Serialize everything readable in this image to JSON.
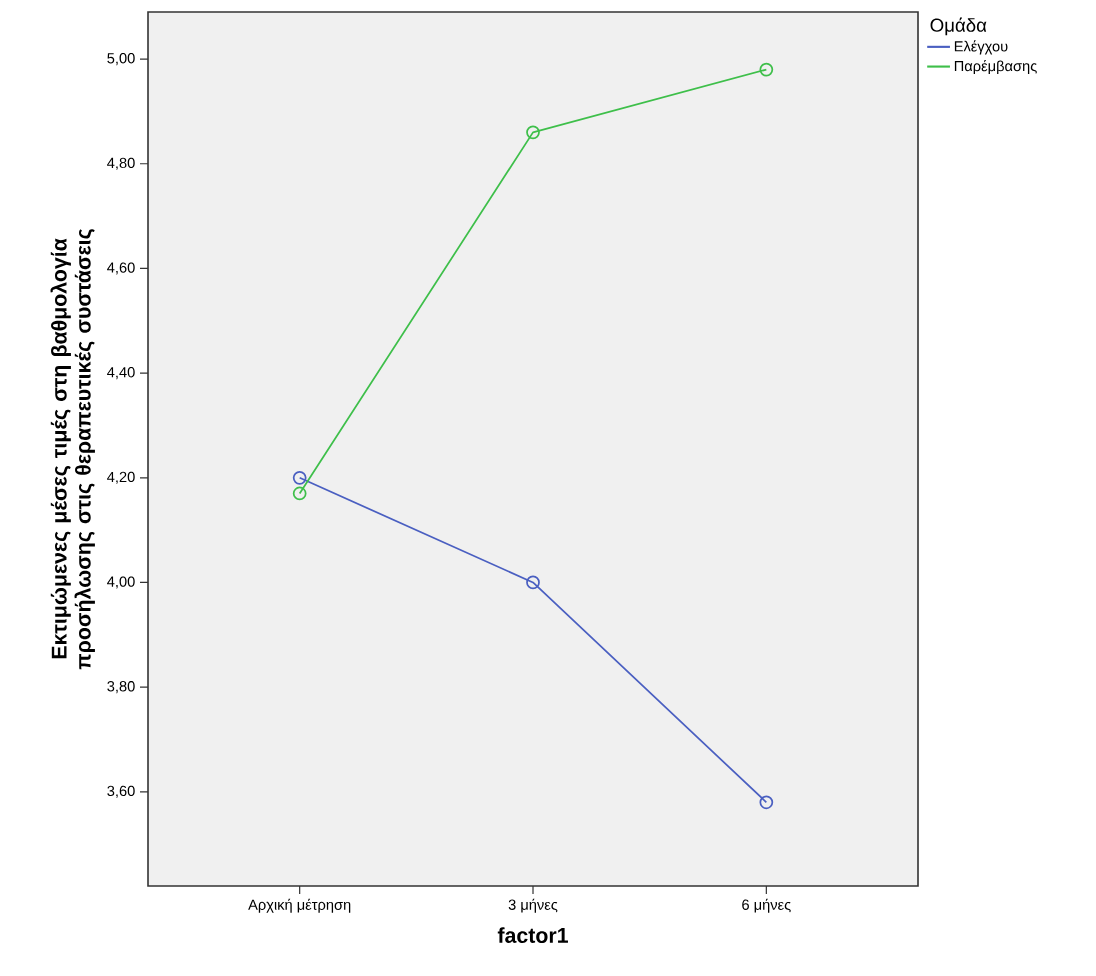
{
  "chart_data": {
    "type": "line",
    "xlabel": "factor1",
    "ylabel": "Εκτιμώμενες μέσες τιμές στη βαθμολογία προσήλωσης στις θεραπευτικές συστάσεις",
    "legend_title": "Ομάδα",
    "categories": [
      "Αρχική μέτρηση",
      "3 μήνες",
      "6 μήνες"
    ],
    "series": [
      {
        "name": "Ελέγχου",
        "color": "#4a5fc1",
        "values": [
          4.2,
          4.0,
          3.58
        ]
      },
      {
        "name": "Παρέμβασης",
        "color": "#3ebf4a",
        "values": [
          4.17,
          4.86,
          4.98
        ]
      }
    ],
    "ylim": [
      3.42,
      5.09
    ],
    "yticks": [
      {
        "value": 3.6,
        "label": "3,60"
      },
      {
        "value": 3.8,
        "label": "3,80"
      },
      {
        "value": 4.0,
        "label": "4,00"
      },
      {
        "value": 4.2,
        "label": "4,20"
      },
      {
        "value": 4.4,
        "label": "4,40"
      },
      {
        "value": 4.6,
        "label": "4,60"
      },
      {
        "value": 4.8,
        "label": "4,80"
      },
      {
        "value": 5.0,
        "label": "5,00"
      }
    ],
    "grid": false,
    "legend": "top right",
    "marker": "circle",
    "line_style": "solid"
  }
}
